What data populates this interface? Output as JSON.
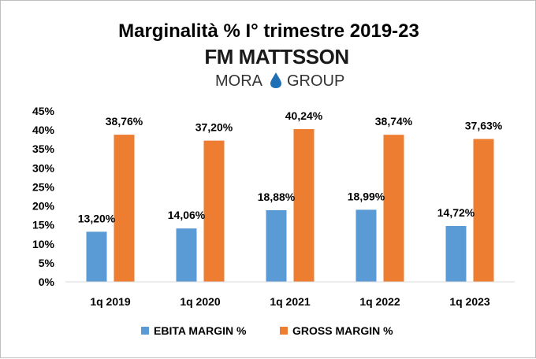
{
  "chart_data": {
    "type": "bar",
    "title": "Marginalità % I° trimestre 2019-23",
    "logo": {
      "line1": "FM MATTSSON",
      "line2_left": "MORA",
      "line2_right": "GROUP",
      "drop_color": "#1f6fb5"
    },
    "categories": [
      "1q 2019",
      "1q 2020",
      "1q 2021",
      "1q 2022",
      "1q 2023"
    ],
    "series": [
      {
        "name": "EBITA MARGIN %",
        "color": "#5b9bd5",
        "values": [
          13.2,
          14.06,
          18.88,
          18.99,
          14.72
        ],
        "labels": [
          "13,20%",
          "14,06%",
          "18,88%",
          "18,99%",
          "14,72%"
        ]
      },
      {
        "name": "GROSS MARGIN %",
        "color": "#ed7d31",
        "values": [
          38.76,
          37.2,
          40.24,
          38.74,
          37.63
        ],
        "labels": [
          "38,76%",
          "37,20%",
          "40,24%",
          "38,74%",
          "37,63%"
        ]
      }
    ],
    "yticks": [
      "45%",
      "40%",
      "35%",
      "30%",
      "25%",
      "20%",
      "15%",
      "10%",
      "5%",
      "0%"
    ],
    "ylim": [
      0,
      45
    ],
    "grid": false,
    "legend_position": "bottom"
  }
}
